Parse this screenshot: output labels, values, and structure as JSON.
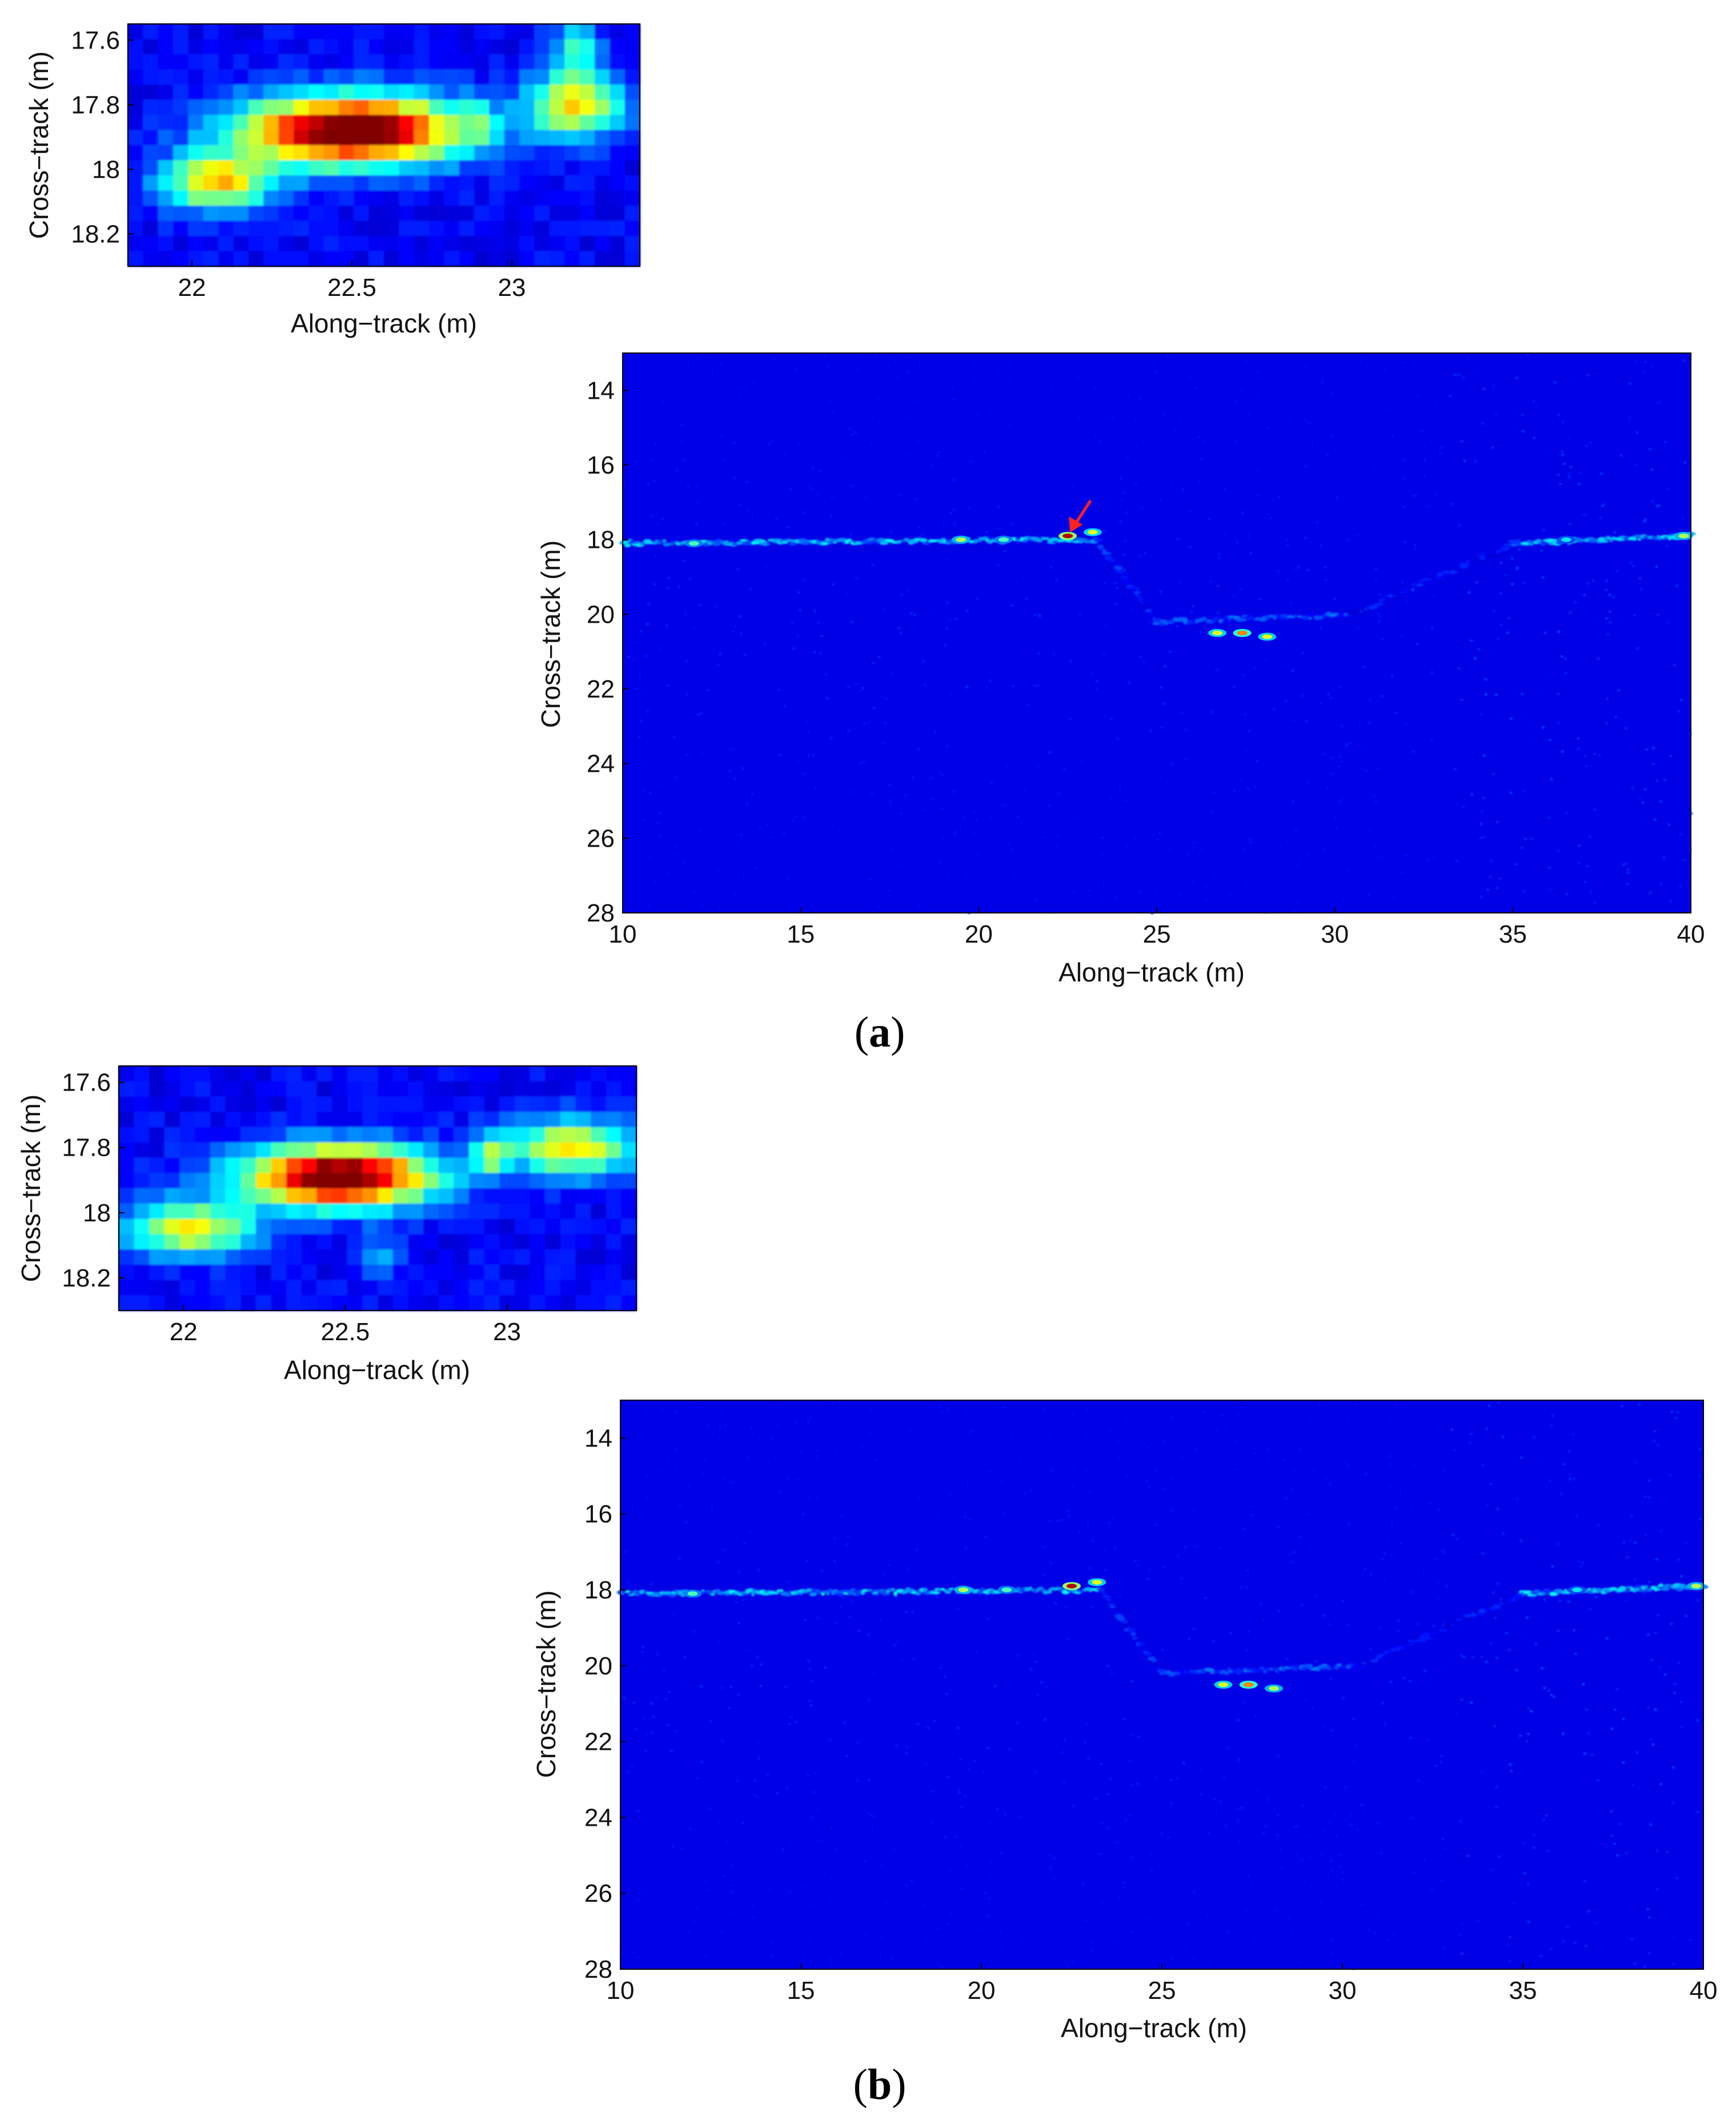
{
  "figure": {
    "panels": [
      {
        "label_open": "(",
        "label_letter": "a",
        "label_close": ")"
      },
      {
        "label_open": "(",
        "label_letter": "b",
        "label_close": ")"
      }
    ]
  },
  "chart_data": [
    {
      "type": "heatmap",
      "panel": "a",
      "view": "zoom",
      "xlabel": "Along−track (m)",
      "ylabel": "Cross−track (m)",
      "xlim": [
        21.8,
        23.4
      ],
      "ylim": [
        18.3,
        17.55
      ],
      "xticks": [
        22,
        22.5,
        23
      ],
      "xtick_labels": [
        "22",
        "22.5",
        "23"
      ],
      "yticks": [
        17.6,
        17.8,
        18,
        18.2
      ],
      "ytick_labels": [
        "17.6",
        "17.8",
        "18",
        "18.2"
      ],
      "colormap": "jet",
      "background_intensity": 0.12,
      "blobs": [
        {
          "x": 22.5,
          "y": 17.88,
          "sx": 0.24,
          "sy": 0.075,
          "amp": 1.0
        },
        {
          "x": 22.08,
          "y": 18.04,
          "sx": 0.12,
          "sy": 0.06,
          "amp": 0.55
        },
        {
          "x": 23.2,
          "y": 17.8,
          "sx": 0.1,
          "sy": 0.07,
          "amp": 0.55
        },
        {
          "x": 23.2,
          "y": 17.62,
          "sx": 0.05,
          "sy": 0.06,
          "amp": 0.3
        },
        {
          "x": 22.9,
          "y": 17.85,
          "sx": 0.03,
          "sy": 0.05,
          "amp": 0.2
        }
      ]
    },
    {
      "type": "heatmap",
      "panel": "a",
      "view": "full",
      "xlabel": "Along−track (m)",
      "ylabel": "Cross−track (m)",
      "xlim": [
        10,
        40
      ],
      "ylim": [
        28,
        13
      ],
      "xticks": [
        10,
        15,
        20,
        25,
        30,
        35,
        40
      ],
      "xtick_labels": [
        "10",
        "15",
        "20",
        "25",
        "30",
        "35",
        "40"
      ],
      "yticks": [
        14,
        16,
        18,
        20,
        22,
        24,
        26,
        28
      ],
      "ytick_labels": [
        "14",
        "16",
        "18",
        "20",
        "22",
        "24",
        "26",
        "28"
      ],
      "colormap": "jet",
      "background_intensity": 0.1,
      "annotation": {
        "type": "arrow",
        "color": "#ff2020",
        "points_to": [
          22.5,
          17.9
        ]
      },
      "echo_tracks": [
        {
          "x": [
            10,
            23.3
          ],
          "y": [
            18.1,
            18.0
          ],
          "amp": 0.3
        },
        {
          "x": [
            23.3,
            25
          ],
          "y": [
            18.0,
            20.2
          ],
          "amp": 0.16
        },
        {
          "x": [
            25,
            30.5
          ],
          "y": [
            20.2,
            20.0
          ],
          "amp": 0.2
        },
        {
          "x": [
            30.5,
            35
          ],
          "y": [
            20.0,
            18.1
          ],
          "amp": 0.14
        },
        {
          "x": [
            35,
            40
          ],
          "y": [
            18.1,
            17.9
          ],
          "amp": 0.3
        }
      ],
      "hotspots": [
        {
          "x": 22.5,
          "y": 17.9,
          "amp": 0.95
        },
        {
          "x": 23.2,
          "y": 17.8,
          "amp": 0.6
        },
        {
          "x": 19.5,
          "y": 18.0,
          "amp": 0.55
        },
        {
          "x": 20.7,
          "y": 18.0,
          "amp": 0.45
        },
        {
          "x": 12.0,
          "y": 18.1,
          "amp": 0.45
        },
        {
          "x": 26.7,
          "y": 20.5,
          "amp": 0.6
        },
        {
          "x": 27.4,
          "y": 20.5,
          "amp": 0.75
        },
        {
          "x": 28.1,
          "y": 20.6,
          "amp": 0.6
        },
        {
          "x": 39.8,
          "y": 17.9,
          "amp": 0.55
        },
        {
          "x": 36.5,
          "y": 18.0,
          "amp": 0.35
        }
      ]
    },
    {
      "type": "heatmap",
      "panel": "b",
      "view": "zoom",
      "xlabel": "Along−track (m)",
      "ylabel": "Cross−track (m)",
      "xlim": [
        21.8,
        23.4
      ],
      "ylim": [
        18.3,
        17.55
      ],
      "xticks": [
        22,
        22.5,
        23
      ],
      "xtick_labels": [
        "22",
        "22.5",
        "23"
      ],
      "yticks": [
        17.6,
        17.8,
        18,
        18.2
      ],
      "ytick_labels": [
        "17.6",
        "17.8",
        "18",
        "18.2"
      ],
      "colormap": "jet",
      "background_intensity": 0.12,
      "blobs": [
        {
          "x": 22.48,
          "y": 17.89,
          "sx": 0.2,
          "sy": 0.065,
          "amp": 1.0
        },
        {
          "x": 22.02,
          "y": 18.05,
          "sx": 0.14,
          "sy": 0.06,
          "amp": 0.5
        },
        {
          "x": 23.2,
          "y": 17.8,
          "sx": 0.13,
          "sy": 0.06,
          "amp": 0.55
        },
        {
          "x": 22.95,
          "y": 17.82,
          "sx": 0.04,
          "sy": 0.05,
          "amp": 0.3
        },
        {
          "x": 22.6,
          "y": 18.13,
          "sx": 0.05,
          "sy": 0.04,
          "amp": 0.2
        }
      ]
    },
    {
      "type": "heatmap",
      "panel": "b",
      "view": "full",
      "xlabel": "Along−track (m)",
      "ylabel": "Cross−track (m)",
      "xlim": [
        10,
        40
      ],
      "ylim": [
        28,
        13
      ],
      "xticks": [
        10,
        15,
        20,
        25,
        30,
        35,
        40
      ],
      "xtick_labels": [
        "10",
        "15",
        "20",
        "25",
        "30",
        "35",
        "40"
      ],
      "yticks": [
        14,
        16,
        18,
        20,
        22,
        24,
        26,
        28
      ],
      "ytick_labels": [
        "14",
        "16",
        "18",
        "20",
        "22",
        "24",
        "26",
        "28"
      ],
      "colormap": "jet",
      "background_intensity": 0.1,
      "echo_tracks": [
        {
          "x": [
            10,
            23.3
          ],
          "y": [
            18.1,
            18.0
          ],
          "amp": 0.3
        },
        {
          "x": [
            23.3,
            25
          ],
          "y": [
            18.0,
            20.2
          ],
          "amp": 0.16
        },
        {
          "x": [
            25,
            30.5
          ],
          "y": [
            20.2,
            20.0
          ],
          "amp": 0.2
        },
        {
          "x": [
            30.5,
            35
          ],
          "y": [
            20.0,
            18.1
          ],
          "amp": 0.14
        },
        {
          "x": [
            35,
            40
          ],
          "y": [
            18.1,
            17.9
          ],
          "amp": 0.3
        }
      ],
      "hotspots": [
        {
          "x": 22.5,
          "y": 17.9,
          "amp": 0.95
        },
        {
          "x": 23.2,
          "y": 17.8,
          "amp": 0.6
        },
        {
          "x": 19.5,
          "y": 18.0,
          "amp": 0.55
        },
        {
          "x": 20.7,
          "y": 18.0,
          "amp": 0.45
        },
        {
          "x": 12.0,
          "y": 18.1,
          "amp": 0.45
        },
        {
          "x": 26.7,
          "y": 20.5,
          "amp": 0.6
        },
        {
          "x": 27.4,
          "y": 20.5,
          "amp": 0.75
        },
        {
          "x": 28.1,
          "y": 20.6,
          "amp": 0.55
        },
        {
          "x": 39.8,
          "y": 17.9,
          "amp": 0.55
        },
        {
          "x": 36.5,
          "y": 18.0,
          "amp": 0.35
        }
      ]
    }
  ]
}
